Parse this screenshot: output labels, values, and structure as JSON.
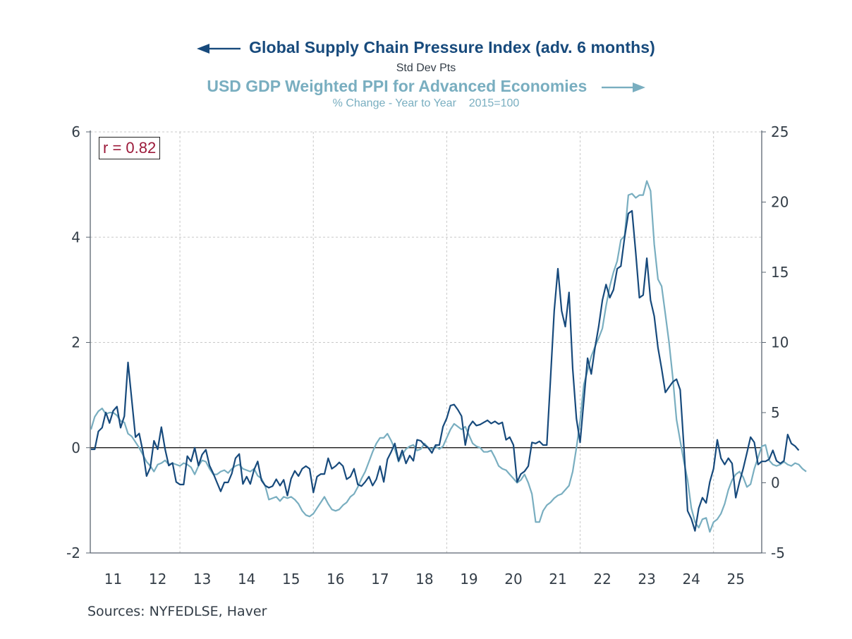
{
  "header": {
    "title_left_series": "Global Supply Chain Pressure Index (adv. 6 months)",
    "subtitle_left_series": "Std Dev Pts",
    "title_right_series": "USD GDP Weighted PPI for Advanced Economies",
    "subtitle_right_series": "% Change - Year to Year    2015=100",
    "left_arrow_icon": "arrow-left",
    "right_arrow_icon": "arrow-right"
  },
  "annotation": {
    "correlation": "r = 0.82"
  },
  "footer": {
    "sources": "Sources:  NYFEDLSE, Haver"
  },
  "colors": {
    "gscpi": "#174a7c",
    "ppi": "#79aec0",
    "zero_line": "#000000",
    "grid": "#c8c8c8",
    "axis": "#5a6570",
    "rbox_text": "#9c1a3a"
  },
  "chart_data": {
    "type": "line",
    "title": "Global Supply Chain Pressure Index (adv. 6 months) vs USD GDP Weighted PPI for Advanced Economies",
    "x_start": 2011.0,
    "x_step_months": 1,
    "xlim": [
      2011.0,
      2026.1
    ],
    "x_tick_labels": [
      "11",
      "12",
      "13",
      "14",
      "15",
      "16",
      "17",
      "18",
      "19",
      "20",
      "21",
      "22",
      "23",
      "24",
      "25"
    ],
    "grid": true,
    "legend": "top-center",
    "y_left": {
      "label": "Std Dev Pts",
      "ylim": [
        -2,
        6
      ],
      "ticks": [
        -2,
        0,
        2,
        4,
        6
      ],
      "tick_labels": [
        "-2",
        "0",
        "2",
        "4",
        "6"
      ]
    },
    "y_right": {
      "label": "% Change - Year to Year, 2015=100",
      "ylim": [
        -5,
        25
      ],
      "ticks": [
        -5,
        0,
        5,
        10,
        15,
        20,
        25
      ],
      "tick_labels": [
        "-5",
        "0",
        "5",
        "10",
        "15",
        "20",
        "25"
      ]
    },
    "series": [
      {
        "name": "Global Supply Chain Pressure Index (adv. 6 months)",
        "axis": "left",
        "start": 2011.0,
        "values": [
          -0.03,
          -0.03,
          0.31,
          0.38,
          0.67,
          0.47,
          0.7,
          0.78,
          0.38,
          0.6,
          1.62,
          0.91,
          0.2,
          0.27,
          -0.07,
          -0.54,
          -0.38,
          0.13,
          -0.03,
          0.39,
          -0.03,
          -0.34,
          -0.29,
          -0.65,
          -0.7,
          -0.7,
          -0.16,
          -0.26,
          0.0,
          -0.34,
          -0.13,
          -0.04,
          -0.34,
          -0.49,
          -0.66,
          -0.83,
          -0.66,
          -0.66,
          -0.49,
          -0.2,
          -0.12,
          -0.69,
          -0.55,
          -0.69,
          -0.42,
          -0.26,
          -0.62,
          -0.72,
          -0.76,
          -0.73,
          -0.6,
          -0.72,
          -0.61,
          -0.91,
          -0.59,
          -0.44,
          -0.54,
          -0.4,
          -0.35,
          -0.4,
          -0.85,
          -0.55,
          -0.5,
          -0.5,
          -0.2,
          -0.4,
          -0.35,
          -0.28,
          -0.35,
          -0.6,
          -0.55,
          -0.4,
          -0.7,
          -0.73,
          -0.65,
          -0.55,
          -0.72,
          -0.6,
          -0.35,
          -0.65,
          -0.22,
          -0.08,
          0.08,
          -0.25,
          -0.05,
          -0.3,
          -0.15,
          -0.25,
          0.15,
          0.13,
          0.05,
          0.0,
          -0.1,
          0.05,
          0.05,
          0.4,
          0.56,
          0.8,
          0.82,
          0.72,
          0.6,
          0.05,
          0.4,
          0.5,
          0.42,
          0.44,
          0.48,
          0.52,
          0.46,
          0.5,
          0.45,
          0.48,
          0.15,
          0.2,
          0.05,
          -0.65,
          -0.5,
          -0.45,
          -0.35,
          0.1,
          0.08,
          0.12,
          0.05,
          0.05,
          1.3,
          2.6,
          3.4,
          2.6,
          2.3,
          2.95,
          1.5,
          0.55,
          0.1,
          0.9,
          1.7,
          1.4,
          1.9,
          2.3,
          2.8,
          3.1,
          2.85,
          3.0,
          3.4,
          3.45,
          4.0,
          4.45,
          4.5,
          3.7,
          2.85,
          2.9,
          3.6,
          2.8,
          2.5,
          1.9,
          1.5,
          1.05,
          1.15,
          1.25,
          1.3,
          1.1,
          0.0,
          -1.2,
          -1.35,
          -1.58,
          -1.15,
          -0.95,
          -1.05,
          -0.65,
          -0.4,
          0.15,
          -0.2,
          -0.32,
          -0.2,
          -0.3,
          -0.95,
          -0.65,
          -0.4,
          -0.1,
          0.2,
          0.1,
          -0.32,
          -0.26,
          -0.26,
          -0.22,
          -0.05,
          -0.25,
          -0.3,
          -0.25,
          0.25,
          0.08,
          0.03,
          -0.05
        ]
      },
      {
        "name": "USD GDP Weighted PPI for Advanced Economies",
        "axis": "right",
        "start": 2011.0,
        "values": [
          3.8,
          4.7,
          5.1,
          5.3,
          4.9,
          5.0,
          5.0,
          4.8,
          4.4,
          4.3,
          3.5,
          3.3,
          2.9,
          2.5,
          2.0,
          1.5,
          1.2,
          0.8,
          1.3,
          1.4,
          1.6,
          1.3,
          1.4,
          1.3,
          1.2,
          1.4,
          1.3,
          1.1,
          0.6,
          1.2,
          1.6,
          1.5,
          1.0,
          0.6,
          0.6,
          0.8,
          0.9,
          0.7,
          1.0,
          1.2,
          1.3,
          1.0,
          0.9,
          0.8,
          1.0,
          0.5,
          0.3,
          -0.2,
          -1.2,
          -1.1,
          -1.0,
          -1.3,
          -1.0,
          -1.1,
          -1.0,
          -1.2,
          -1.5,
          -2.0,
          -2.3,
          -2.4,
          -2.2,
          -1.8,
          -1.4,
          -1.0,
          -1.5,
          -1.9,
          -2.0,
          -1.9,
          -1.6,
          -1.4,
          -1.0,
          -0.8,
          -0.3,
          0.3,
          0.8,
          1.5,
          2.2,
          2.8,
          3.2,
          3.2,
          3.5,
          3.0,
          2.4,
          1.5,
          2.0,
          2.4,
          2.6,
          2.7,
          2.3,
          2.4,
          2.8,
          2.5,
          2.4,
          2.6,
          2.4,
          2.6,
          3.2,
          3.8,
          4.2,
          4.0,
          3.8,
          4.0,
          3.4,
          2.8,
          2.6,
          2.5,
          2.2,
          2.2,
          2.3,
          1.8,
          1.2,
          1.0,
          0.9,
          0.6,
          0.3,
          0.0,
          0.2,
          0.6,
          0.0,
          -0.8,
          -2.8,
          -2.8,
          -2.0,
          -1.6,
          -1.4,
          -1.1,
          -0.9,
          -0.8,
          -0.5,
          -0.2,
          0.8,
          2.5,
          4.4,
          7.0,
          8.0,
          9.0,
          9.7,
          10.3,
          11.0,
          12.6,
          14.0,
          15.0,
          15.8,
          17.3,
          17.6,
          20.5,
          20.6,
          20.3,
          20.5,
          20.5,
          21.5,
          20.8,
          17.0,
          14.5,
          14.0,
          12.0,
          10.0,
          7.5,
          4.5,
          3.0,
          1.5,
          0.2,
          -1.8,
          -2.8,
          -3.2,
          -2.6,
          -2.5,
          -3.5,
          -2.8,
          -2.6,
          -2.2,
          -1.5,
          -0.5,
          0.2,
          0.6,
          0.8,
          0.4,
          -0.3,
          -0.1,
          1.0,
          1.8,
          2.6,
          2.7,
          1.6,
          1.3,
          1.2,
          1.3,
          1.5,
          1.3,
          1.2,
          1.4,
          1.3,
          1.0,
          0.8
        ]
      }
    ]
  }
}
